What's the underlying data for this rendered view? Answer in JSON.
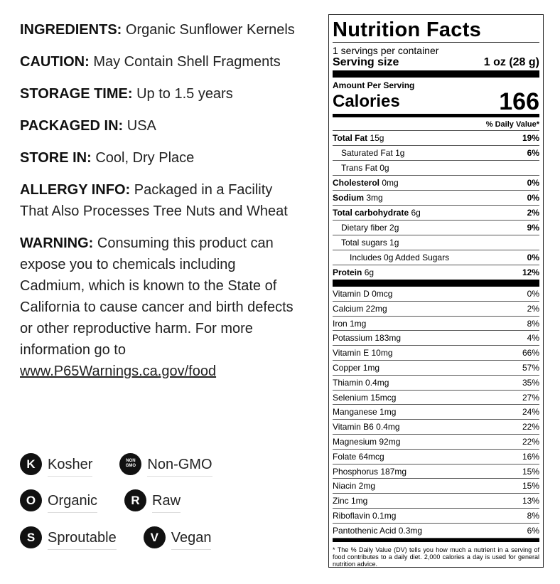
{
  "info": [
    {
      "label": "INGREDIENTS:",
      "text": "Organic Sunflower Kernels"
    },
    {
      "label": "CAUTION:",
      "text": "May Contain Shell Fragments"
    },
    {
      "label": "STORAGE TIME:",
      "text": "Up to 1.5 years"
    },
    {
      "label": "PACKAGED IN:",
      "text": "USA"
    },
    {
      "label": "STORE IN:",
      "text": "Cool, Dry Place"
    },
    {
      "label": "ALLERGY INFO:",
      "text": "Packaged in a Facility That Also Processes Tree Nuts and Wheat"
    },
    {
      "label": "WARNING:",
      "text": "Consuming this product can expose you to chemicals including Cadmium, which is known to the State of California to cause cancer and birth defects or other reproductive harm. For more information go to",
      "link": "www.P65Warnings.ca.gov/food"
    }
  ],
  "badges": [
    {
      "icon": [
        "K"
      ],
      "label": "Kosher"
    },
    {
      "icon": [
        "NON",
        "GMO"
      ],
      "label": "Non-GMO"
    },
    {
      "icon": [
        "O"
      ],
      "label": "Organic"
    },
    {
      "icon": [
        "R"
      ],
      "label": "Raw"
    },
    {
      "icon": [
        "S"
      ],
      "label": "Sproutable"
    },
    {
      "icon": [
        "V"
      ],
      "label": "Vegan"
    }
  ],
  "nutrition": {
    "title": "Nutrition Facts",
    "servings": "1 servings per container",
    "serving_size": {
      "label": "Serving size",
      "value": "1 oz (28 g)"
    },
    "amount_per_serving": "Amount Per Serving",
    "calories": {
      "label": "Calories",
      "value": 166
    },
    "dv_header": "% Daily Value*",
    "nutrients": [
      {
        "name": "Total Fat",
        "amount": "15g",
        "dv": "19%",
        "sub": [
          {
            "name": "Saturated Fat",
            "amount": "1g",
            "dv": "6%"
          },
          {
            "name": "Trans Fat",
            "amount": "0g"
          }
        ]
      },
      {
        "name": "Cholesterol",
        "amount": "0mg",
        "dv": "0%"
      },
      {
        "name": "Sodium",
        "amount": "3mg",
        "dv": "0%"
      },
      {
        "name": "Total carbohydrate",
        "amount": "6g",
        "dv": "2%",
        "sub": [
          {
            "name": "Dietary fiber",
            "amount": "2g",
            "dv": "9%"
          },
          {
            "name": "Total sugars",
            "amount": "1g",
            "sub": [
              {
                "name": "Includes 0g Added Sugars",
                "dv": "0%"
              }
            ]
          }
        ]
      },
      {
        "name": "Protein",
        "amount": "6g",
        "dv": "12%"
      }
    ],
    "micronutrients": [
      {
        "name": "Vitamin D 0mcg",
        "dv": "0%"
      },
      {
        "name": "Calcium 22mg",
        "dv": "2%"
      },
      {
        "name": "Iron 1mg",
        "dv": "8%"
      },
      {
        "name": "Potassium 183mg",
        "dv": "4%"
      },
      {
        "name": "Vitamin E 10mg",
        "dv": "66%"
      },
      {
        "name": "Copper 1mg",
        "dv": "57%"
      },
      {
        "name": "Thiamin 0.4mg",
        "dv": "35%"
      },
      {
        "name": "Selenium 15mcg",
        "dv": "27%"
      },
      {
        "name": "Manganese 1mg",
        "dv": "24%"
      },
      {
        "name": "Vitamin B6 0.4mg",
        "dv": "22%"
      },
      {
        "name": "Magnesium 92mg",
        "dv": "22%"
      },
      {
        "name": "Folate 64mcg",
        "dv": "16%"
      },
      {
        "name": "Phosphorus 187mg",
        "dv": "15%"
      },
      {
        "name": "Niacin 2mg",
        "dv": "15%"
      },
      {
        "name": "Zinc 1mg",
        "dv": "13%"
      },
      {
        "name": "Riboflavin 0.1mg",
        "dv": "8%"
      },
      {
        "name": "Pantothenic Acid 0.3mg",
        "dv": "6%"
      }
    ],
    "footnote": "* The % Daily Value (DV) tells you how much a nutrient in a serving of food contributes to a daily diet. 2,000 calories a day is used for general nutrition advice."
  }
}
